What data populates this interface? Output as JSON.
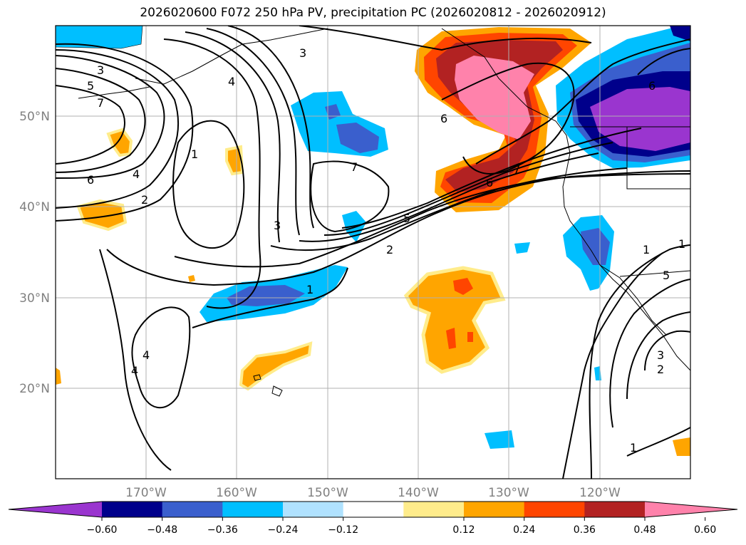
{
  "title": "2026020600 F072 250 hPa PV, precipitation PC (2026020812 - 2026020912)",
  "map": {
    "lat_labels": [
      "50°N",
      "40°N",
      "30°N",
      "20°N"
    ],
    "lon_labels": [
      "170°W",
      "160°W",
      "150°W",
      "140°W",
      "130°W",
      "120°W"
    ],
    "pv_contour_labels": [
      "3",
      "5",
      "7",
      "6",
      "4",
      "2",
      "1",
      "1",
      "3",
      "4",
      "3",
      "7",
      "5",
      "6",
      "7",
      "2",
      "1",
      "1",
      "4",
      "6",
      "1",
      "2",
      "3",
      "4",
      "5",
      "6"
    ]
  },
  "colorbar": {
    "ticks": [
      "−0.60",
      "−0.48",
      "−0.36",
      "−0.24",
      "−0.12",
      "0.12",
      "0.24",
      "0.36",
      "0.48",
      "0.60"
    ],
    "colors": [
      "#9a35cf",
      "#00008b",
      "#3a5fcd",
      "#00bfff",
      "#b0e2ff",
      "#ffffff",
      "#ffec8b",
      "#ffa500",
      "#ff4500",
      "#b22222",
      "#ff82ab"
    ]
  }
}
